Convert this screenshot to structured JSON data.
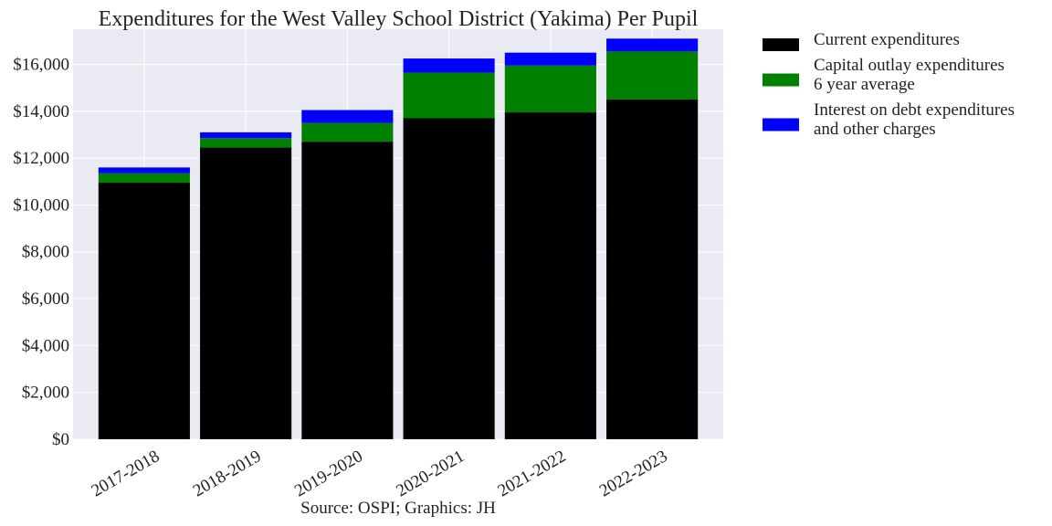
{
  "chart_data": {
    "type": "bar",
    "stacked": true,
    "title": "Expenditures for the West Valley School District (Yakima) Per Pupil",
    "caption": "Source: OSPI; Graphics: JH",
    "xlabel": "",
    "ylabel": "",
    "categories": [
      "2017-2018",
      "2018-2019",
      "2019-2020",
      "2020-2021",
      "2021-2022",
      "2022-2023"
    ],
    "series": [
      {
        "name": "Current expenditures",
        "color": "#000000",
        "values": [
          10950,
          12450,
          12700,
          13700,
          13950,
          14500
        ]
      },
      {
        "name": "Capital outlay expenditures\n6 year average",
        "color": "#008000",
        "values": [
          400,
          400,
          800,
          1950,
          2000,
          2050
        ]
      },
      {
        "name": "Interest on debt expenditures\nand other charges",
        "color": "#0000ff",
        "values": [
          250,
          250,
          550,
          600,
          550,
          550
        ]
      }
    ],
    "ylim": [
      0,
      17500
    ],
    "yticks": [
      0,
      2000,
      4000,
      6000,
      8000,
      10000,
      12000,
      14000,
      16000
    ],
    "ytick_labels": [
      "$0",
      "$2,000",
      "$4,000",
      "$6,000",
      "$8,000",
      "$10,000",
      "$12,000",
      "$14,000",
      "$16,000"
    ],
    "xtick_rotation": -30,
    "grid": true,
    "legend_position": "outside-right-top",
    "background_color": "#eaeaf2"
  }
}
